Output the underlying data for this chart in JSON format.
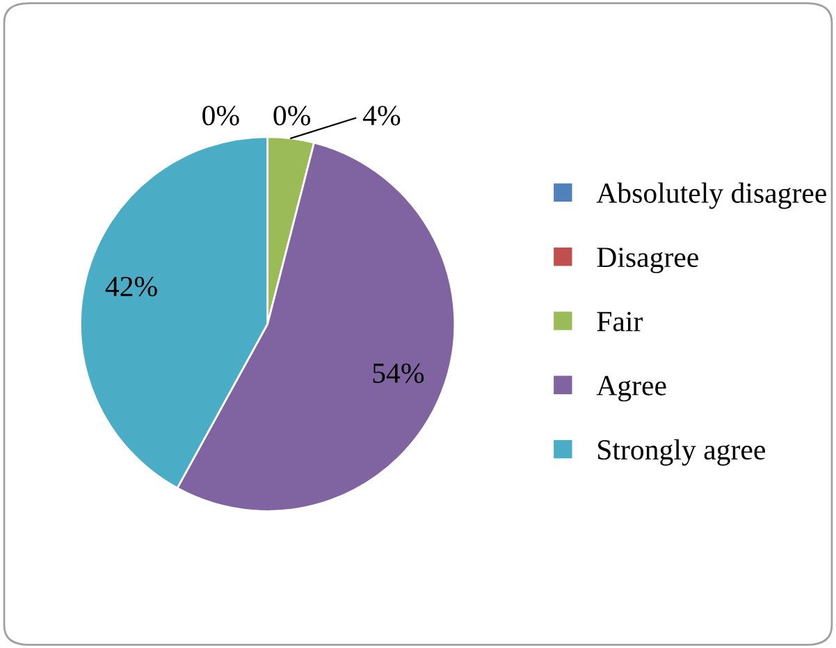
{
  "chart_data": {
    "type": "pie",
    "categories": [
      "Absolutely disagree",
      "Disagree",
      "Fair",
      "Agree",
      "Strongly agree"
    ],
    "values": [
      0,
      0,
      4,
      54,
      42
    ],
    "colors": [
      "#4f81bd",
      "#c0504d",
      "#9bbb59",
      "#8064a2",
      "#4bacc6"
    ],
    "value_labels": [
      "0%",
      "0%",
      "4%",
      "54%",
      "42%"
    ],
    "legend": "right"
  }
}
